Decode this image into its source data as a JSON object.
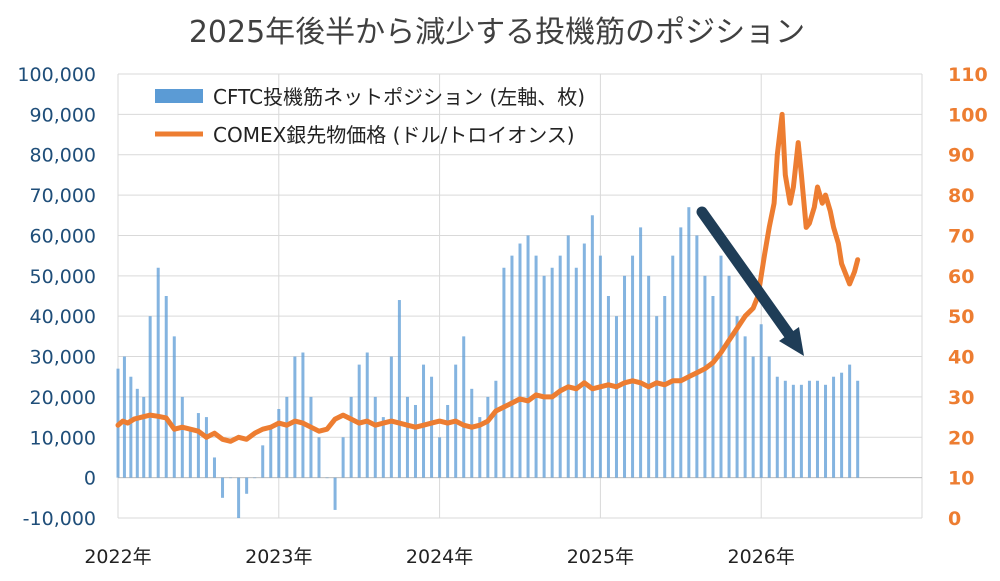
{
  "chart_data": {
    "type": "bar+line",
    "title": "2025年後半から減少する投機筋のポジション",
    "x_tick_labels": [
      "2022年",
      "2023年",
      "2024年",
      "2025年",
      "2026年"
    ],
    "y_left": {
      "ylim": [
        -10000,
        100000
      ],
      "ticks": [
        -10000,
        0,
        10000,
        20000,
        30000,
        40000,
        50000,
        60000,
        70000,
        80000,
        90000,
        100000
      ],
      "tick_labels": [
        "-10,000",
        "0",
        "10,000",
        "20,000",
        "30,000",
        "40,000",
        "50,000",
        "60,000",
        "70,000",
        "80,000",
        "90,000",
        "100,000"
      ]
    },
    "y_right": {
      "ylim": [
        0,
        110
      ],
      "ticks": [
        0,
        10,
        20,
        30,
        40,
        50,
        60,
        70,
        80,
        90,
        100,
        110
      ],
      "tick_labels": [
        "0",
        "10",
        "20",
        "30",
        "40",
        "50",
        "60",
        "70",
        "80",
        "90",
        "100",
        "110"
      ]
    },
    "x_range": [
      2022.0,
      2027.0
    ],
    "grid": true,
    "legend_position": "top-left",
    "series": [
      {
        "name": "CFTC投機筋ネットポジション (左軸、枚)",
        "kind": "bar",
        "axis": "left",
        "color": "#5b9bd5",
        "x": [
          2022.0,
          2022.04,
          2022.08,
          2022.12,
          2022.16,
          2022.2,
          2022.25,
          2022.3,
          2022.35,
          2022.4,
          2022.45,
          2022.5,
          2022.55,
          2022.6,
          2022.65,
          2022.7,
          2022.75,
          2022.8,
          2022.85,
          2022.9,
          2022.95,
          2023.0,
          2023.05,
          2023.1,
          2023.15,
          2023.2,
          2023.25,
          2023.3,
          2023.35,
          2023.4,
          2023.45,
          2023.5,
          2023.55,
          2023.6,
          2023.65,
          2023.7,
          2023.75,
          2023.8,
          2023.85,
          2023.9,
          2023.95,
          2024.0,
          2024.05,
          2024.1,
          2024.15,
          2024.2,
          2024.25,
          2024.3,
          2024.35,
          2024.4,
          2024.45,
          2024.5,
          2024.55,
          2024.6,
          2024.65,
          2024.7,
          2024.75,
          2024.8,
          2024.85,
          2024.9,
          2024.95,
          2025.0,
          2025.05,
          2025.1,
          2025.15,
          2025.2,
          2025.25,
          2025.3,
          2025.35,
          2025.4,
          2025.45,
          2025.5,
          2025.55,
          2025.6,
          2025.65,
          2025.7,
          2025.75,
          2025.8,
          2025.85,
          2025.9,
          2025.95,
          2026.0,
          2026.05,
          2026.1,
          2026.15,
          2026.2,
          2026.25,
          2026.3,
          2026.35,
          2026.4,
          2026.45,
          2026.5,
          2026.55,
          2026.6
        ],
        "values": [
          27000,
          30000,
          25000,
          22000,
          20000,
          40000,
          52000,
          45000,
          35000,
          20000,
          12000,
          16000,
          15000,
          5000,
          -5000,
          0,
          -10000,
          -4000,
          0,
          8000,
          12000,
          17000,
          20000,
          30000,
          31000,
          20000,
          10000,
          0,
          -8000,
          10000,
          20000,
          28000,
          31000,
          20000,
          15000,
          30000,
          44000,
          20000,
          18000,
          28000,
          25000,
          10000,
          18000,
          28000,
          35000,
          22000,
          15000,
          20000,
          24000,
          52000,
          55000,
          58000,
          60000,
          55000,
          50000,
          52000,
          55000,
          60000,
          52000,
          58000,
          65000,
          55000,
          45000,
          40000,
          50000,
          55000,
          62000,
          50000,
          40000,
          45000,
          55000,
          62000,
          67000,
          60000,
          50000,
          45000,
          55000,
          50000,
          40000,
          35000,
          30000,
          38000,
          30000,
          25000,
          24000,
          23000,
          23000,
          24000,
          24000,
          23000,
          25000,
          26000,
          28000,
          24000
        ]
      },
      {
        "name": "COMEX銀先物価格 (ドル/トロイオンス)",
        "kind": "line",
        "axis": "right",
        "color": "#ed7d31",
        "x": [
          2022.0,
          2022.03,
          2022.06,
          2022.1,
          2022.15,
          2022.2,
          2022.25,
          2022.3,
          2022.35,
          2022.4,
          2022.45,
          2022.5,
          2022.55,
          2022.6,
          2022.65,
          2022.7,
          2022.75,
          2022.8,
          2022.85,
          2022.9,
          2022.95,
          2023.0,
          2023.05,
          2023.1,
          2023.15,
          2023.2,
          2023.25,
          2023.3,
          2023.35,
          2023.4,
          2023.45,
          2023.5,
          2023.55,
          2023.6,
          2023.65,
          2023.7,
          2023.75,
          2023.8,
          2023.85,
          2023.9,
          2023.95,
          2024.0,
          2024.05,
          2024.1,
          2024.15,
          2024.2,
          2024.25,
          2024.3,
          2024.35,
          2024.4,
          2024.45,
          2024.5,
          2024.55,
          2024.6,
          2024.65,
          2024.7,
          2024.75,
          2024.8,
          2024.85,
          2024.9,
          2024.95,
          2025.0,
          2025.05,
          2025.1,
          2025.15,
          2025.2,
          2025.25,
          2025.3,
          2025.35,
          2025.4,
          2025.45,
          2025.5,
          2025.55,
          2025.6,
          2025.65,
          2025.7,
          2025.75,
          2025.8,
          2025.85,
          2025.9,
          2025.95,
          2025.98,
          2026.02,
          2026.05,
          2026.08,
          2026.1,
          2026.13,
          2026.15,
          2026.18,
          2026.2,
          2026.23,
          2026.25,
          2026.28,
          2026.3,
          2026.33,
          2026.35,
          2026.38,
          2026.4,
          2026.43,
          2026.45,
          2026.48,
          2026.5,
          2026.53,
          2026.55,
          2026.58,
          2026.6
        ],
        "values": [
          23,
          24,
          23.5,
          24.5,
          25,
          25.5,
          25.2,
          24.8,
          22,
          22.5,
          22,
          21.5,
          20,
          21,
          19.5,
          19,
          20,
          19.5,
          21,
          22,
          22.5,
          23.5,
          23,
          24,
          23.5,
          22.5,
          21.5,
          22,
          24.5,
          25.5,
          24.5,
          23.5,
          24,
          23,
          23.5,
          24,
          23.5,
          23,
          22.5,
          23,
          23.5,
          24,
          23.5,
          24,
          23,
          22.5,
          23,
          24,
          26.5,
          27.5,
          28.5,
          29.5,
          29,
          30.5,
          30,
          30,
          31.5,
          32.5,
          32,
          33.5,
          32,
          32.5,
          33,
          32.5,
          33.5,
          34,
          33.5,
          32.5,
          33.5,
          33,
          34,
          34,
          35,
          36,
          37,
          38.5,
          41,
          44,
          47,
          50,
          52,
          55,
          65,
          72,
          78,
          90,
          100,
          85,
          78,
          82,
          93,
          85,
          72,
          73,
          77,
          82,
          78,
          80,
          76,
          72,
          68,
          63,
          60,
          58,
          61,
          64
        ]
      }
    ]
  }
}
